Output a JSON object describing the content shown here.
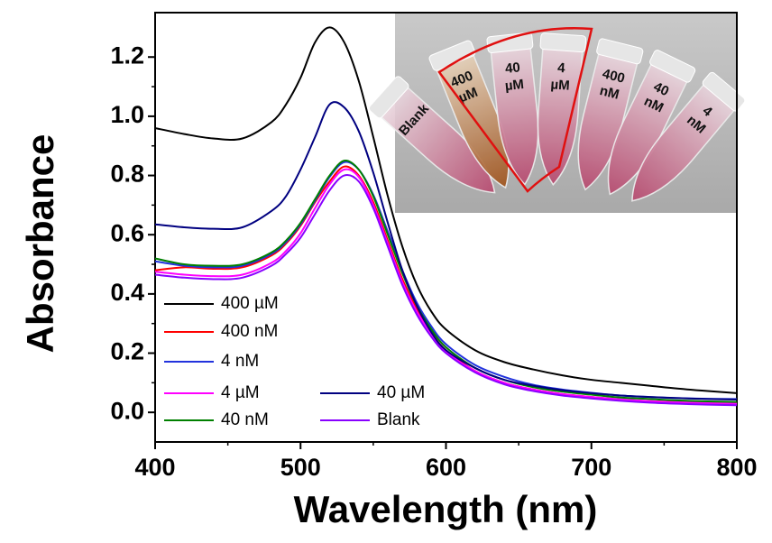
{
  "chart_data": {
    "type": "line",
    "xlabel": "Wavelength (nm)",
    "ylabel": "Absorbance",
    "x": [
      400,
      420,
      440,
      460,
      480,
      490,
      500,
      510,
      520,
      530,
      540,
      550,
      560,
      570,
      580,
      590,
      600,
      620,
      640,
      660,
      680,
      700,
      720,
      740,
      760,
      780,
      800
    ],
    "series": [
      {
        "name": "400 µM",
        "color": "#000000",
        "values": [
          0.96,
          0.94,
          0.925,
          0.925,
          0.98,
          1.04,
          1.13,
          1.25,
          1.3,
          1.25,
          1.12,
          0.93,
          0.73,
          0.56,
          0.43,
          0.34,
          0.28,
          0.21,
          0.17,
          0.145,
          0.125,
          0.11,
          0.1,
          0.09,
          0.08,
          0.072,
          0.065
        ]
      },
      {
        "name": "400 nM",
        "color": "#ff0000",
        "values": [
          0.48,
          0.49,
          0.485,
          0.49,
          0.53,
          0.57,
          0.63,
          0.71,
          0.78,
          0.83,
          0.8,
          0.71,
          0.58,
          0.45,
          0.35,
          0.27,
          0.21,
          0.14,
          0.1,
          0.077,
          0.062,
          0.052,
          0.043,
          0.038,
          0.034,
          0.031,
          0.03
        ]
      },
      {
        "name": "4 nM",
        "color": "#2233dd",
        "values": [
          0.51,
          0.495,
          0.49,
          0.495,
          0.535,
          0.575,
          0.635,
          0.715,
          0.795,
          0.845,
          0.82,
          0.735,
          0.61,
          0.48,
          0.37,
          0.29,
          0.23,
          0.16,
          0.12,
          0.093,
          0.077,
          0.066,
          0.057,
          0.052,
          0.048,
          0.046,
          0.045
        ]
      },
      {
        "name": "4 µM",
        "color": "#ff00ff",
        "values": [
          0.475,
          0.465,
          0.46,
          0.465,
          0.505,
          0.545,
          0.605,
          0.69,
          0.77,
          0.82,
          0.795,
          0.7,
          0.57,
          0.44,
          0.34,
          0.265,
          0.205,
          0.14,
          0.1,
          0.077,
          0.062,
          0.052,
          0.044,
          0.038,
          0.034,
          0.031,
          0.029
        ]
      },
      {
        "name": "40 nM",
        "color": "#008000",
        "values": [
          0.52,
          0.5,
          0.495,
          0.5,
          0.54,
          0.58,
          0.64,
          0.72,
          0.8,
          0.85,
          0.82,
          0.73,
          0.6,
          0.47,
          0.36,
          0.28,
          0.22,
          0.15,
          0.11,
          0.085,
          0.07,
          0.06,
          0.05,
          0.045,
          0.04,
          0.037,
          0.035
        ]
      },
      {
        "name": "40 µM",
        "color": "#000080",
        "values": [
          0.635,
          0.625,
          0.62,
          0.625,
          0.68,
          0.73,
          0.82,
          0.93,
          1.04,
          1.03,
          0.95,
          0.81,
          0.64,
          0.48,
          0.36,
          0.27,
          0.21,
          0.15,
          0.11,
          0.09,
          0.075,
          0.065,
          0.057,
          0.052,
          0.048,
          0.045,
          0.043
        ]
      },
      {
        "name": "Blank",
        "color": "#8800ff",
        "values": [
          0.465,
          0.455,
          0.45,
          0.455,
          0.495,
          0.535,
          0.59,
          0.67,
          0.75,
          0.8,
          0.78,
          0.69,
          0.56,
          0.43,
          0.33,
          0.255,
          0.2,
          0.135,
          0.095,
          0.072,
          0.057,
          0.047,
          0.039,
          0.033,
          0.029,
          0.026,
          0.024
        ]
      }
    ],
    "xlim": [
      400,
      800
    ],
    "xticks": [
      400,
      500,
      600,
      700,
      800
    ],
    "ylim": [
      -0.1,
      1.35
    ],
    "yticks": [
      {
        "value": 0,
        "label": "0.0"
      },
      0.2,
      0.4,
      0.6,
      0.8,
      {
        "value": 1,
        "label": "1.0"
      },
      1.2
    ],
    "grid": false
  },
  "inset": {
    "tubes": [
      [
        "Blank"
      ],
      [
        "400",
        "µM"
      ],
      [
        "40",
        "µM"
      ],
      [
        "4",
        "µM"
      ],
      [
        "400",
        "nM"
      ],
      [
        "40",
        "nM"
      ],
      [
        "4",
        "nM"
      ]
    ]
  }
}
